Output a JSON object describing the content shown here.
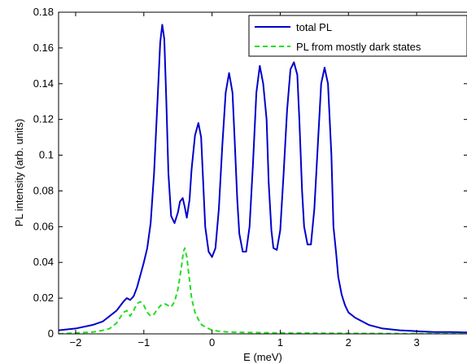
{
  "chart_data": {
    "type": "line",
    "title": "",
    "xlabel": "E (meV)",
    "ylabel": "PL intensity (arb. units)",
    "xlim": [
      -2.25,
      3.75
    ],
    "ylim": [
      0,
      0.18
    ],
    "xticks": [
      -2,
      -1,
      0,
      1,
      2,
      3
    ],
    "xtick_labels": [
      "−2",
      "−1",
      "0",
      "1",
      "2",
      "3"
    ],
    "yticks": [
      0,
      0.02,
      0.04,
      0.06,
      0.08,
      0.1,
      0.12,
      0.14,
      0.16,
      0.18
    ],
    "ytick_labels": [
      "0",
      "0.02",
      "0.04",
      "0.06",
      "0.08",
      "0.1",
      "0.12",
      "0.14",
      "0.16",
      "0.18"
    ],
    "grid": false,
    "legend_position": "top-right",
    "series": [
      {
        "name": "total PL",
        "color": "#0000cc",
        "line_style": "solid",
        "x": [
          -2.25,
          -2.0,
          -1.75,
          -1.6,
          -1.5,
          -1.4,
          -1.3,
          -1.25,
          -1.2,
          -1.15,
          -1.1,
          -1.05,
          -1.0,
          -0.95,
          -0.9,
          -0.85,
          -0.8,
          -0.76,
          -0.73,
          -0.7,
          -0.67,
          -0.64,
          -0.6,
          -0.55,
          -0.5,
          -0.47,
          -0.43,
          -0.4,
          -0.37,
          -0.33,
          -0.3,
          -0.25,
          -0.2,
          -0.16,
          -0.13,
          -0.1,
          -0.05,
          0.0,
          0.05,
          0.1,
          0.15,
          0.2,
          0.25,
          0.3,
          0.33,
          0.37,
          0.4,
          0.45,
          0.5,
          0.55,
          0.6,
          0.65,
          0.7,
          0.75,
          0.8,
          0.83,
          0.87,
          0.9,
          0.95,
          1.0,
          1.05,
          1.1,
          1.15,
          1.2,
          1.25,
          1.28,
          1.32,
          1.35,
          1.4,
          1.45,
          1.5,
          1.55,
          1.6,
          1.65,
          1.7,
          1.75,
          1.78,
          1.82,
          1.85,
          1.9,
          1.95,
          2.0,
          2.1,
          2.2,
          2.3,
          2.5,
          2.75,
          3.0,
          3.25,
          3.5,
          3.75
        ],
        "y": [
          0.002,
          0.003,
          0.005,
          0.007,
          0.01,
          0.013,
          0.018,
          0.02,
          0.019,
          0.021,
          0.026,
          0.033,
          0.04,
          0.048,
          0.062,
          0.09,
          0.13,
          0.163,
          0.173,
          0.165,
          0.13,
          0.09,
          0.066,
          0.062,
          0.068,
          0.074,
          0.076,
          0.071,
          0.065,
          0.075,
          0.092,
          0.111,
          0.118,
          0.11,
          0.085,
          0.06,
          0.046,
          0.043,
          0.048,
          0.07,
          0.105,
          0.135,
          0.146,
          0.135,
          0.11,
          0.075,
          0.056,
          0.046,
          0.046,
          0.06,
          0.095,
          0.135,
          0.15,
          0.14,
          0.12,
          0.085,
          0.058,
          0.048,
          0.047,
          0.058,
          0.09,
          0.125,
          0.148,
          0.152,
          0.145,
          0.12,
          0.08,
          0.06,
          0.05,
          0.05,
          0.07,
          0.105,
          0.14,
          0.149,
          0.14,
          0.1,
          0.06,
          0.045,
          0.032,
          0.022,
          0.016,
          0.012,
          0.009,
          0.007,
          0.005,
          0.003,
          0.002,
          0.0015,
          0.001,
          0.001,
          0.0008
        ]
      },
      {
        "name": "PL from mostly dark states",
        "color": "#22dd22",
        "line_style": "dashed",
        "x": [
          -2.25,
          -2.0,
          -1.75,
          -1.6,
          -1.5,
          -1.4,
          -1.35,
          -1.3,
          -1.25,
          -1.2,
          -1.15,
          -1.1,
          -1.05,
          -1.0,
          -0.95,
          -0.9,
          -0.85,
          -0.8,
          -0.75,
          -0.7,
          -0.65,
          -0.6,
          -0.55,
          -0.5,
          -0.45,
          -0.42,
          -0.4,
          -0.37,
          -0.33,
          -0.3,
          -0.25,
          -0.2,
          -0.15,
          -0.1,
          0.0,
          0.1,
          0.25,
          0.5,
          1.0,
          1.5,
          2.0,
          2.5,
          3.0,
          3.5,
          3.75
        ],
        "y": [
          0.0,
          0.0005,
          0.001,
          0.002,
          0.003,
          0.006,
          0.009,
          0.012,
          0.013,
          0.01,
          0.013,
          0.017,
          0.018,
          0.016,
          0.012,
          0.01,
          0.011,
          0.014,
          0.016,
          0.017,
          0.016,
          0.015,
          0.018,
          0.025,
          0.037,
          0.046,
          0.048,
          0.043,
          0.03,
          0.02,
          0.012,
          0.008,
          0.005,
          0.004,
          0.002,
          0.0015,
          0.001,
          0.0008,
          0.0005,
          0.0004,
          0.0003,
          0.0002,
          0.0001,
          0.0001,
          0.0001
        ]
      }
    ]
  }
}
